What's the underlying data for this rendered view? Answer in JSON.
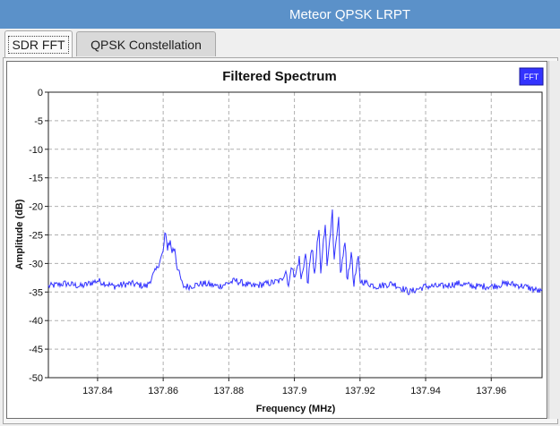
{
  "window": {
    "title": "Meteor QPSK LRPT"
  },
  "tabs": [
    {
      "label": "SDR FFT",
      "active": true
    },
    {
      "label": "QPSK Constellation",
      "active": false
    }
  ],
  "legend": {
    "label": "FFT",
    "color": "#3333ff"
  },
  "chart_data": {
    "type": "line",
    "title": "Filtered Spectrum",
    "xlabel": "Frequency (MHz)",
    "ylabel": "Amplitude (dB)",
    "xlim": [
      137.825,
      137.9755
    ],
    "ylim": [
      -50,
      0
    ],
    "xticks": [
      137.84,
      137.86,
      137.88,
      137.9,
      137.92,
      137.94,
      137.96
    ],
    "xtick_labels": [
      "137.84",
      "137.86",
      "137.88",
      "137.9",
      "137.92",
      "137.94",
      "137.96"
    ],
    "yticks": [
      0,
      -5,
      -10,
      -15,
      -20,
      -25,
      -30,
      -35,
      -40,
      -45,
      -50
    ],
    "ytick_labels": [
      "0",
      "-5",
      "-10",
      "-15",
      "-20",
      "-25",
      "-30",
      "-35",
      "-40",
      "-45",
      "-50"
    ],
    "grid": true,
    "legend_position": "top-right",
    "series": [
      {
        "color": "#3333ff",
        "x": [
          137.825,
          137.83,
          137.835,
          137.84,
          137.845,
          137.85,
          137.855,
          137.858,
          137.86,
          137.8605,
          137.8612,
          137.862,
          137.8628,
          137.8636,
          137.864,
          137.866,
          137.868,
          137.872,
          137.877,
          137.882,
          137.887,
          137.892,
          137.896,
          137.8975,
          137.898,
          137.8995,
          137.9,
          137.9015,
          137.902,
          137.9035,
          137.904,
          137.9055,
          137.906,
          137.9075,
          137.908,
          137.9095,
          137.91,
          137.9115,
          137.912,
          137.9135,
          137.914,
          137.9155,
          137.916,
          137.9175,
          137.918,
          137.9195,
          137.92,
          137.925,
          137.93,
          137.935,
          137.94,
          137.945,
          137.95,
          137.955,
          137.96,
          137.965,
          137.97,
          137.9755
        ],
        "y": [
          -34,
          -33.5,
          -34,
          -33,
          -34,
          -33.5,
          -34,
          -31,
          -28,
          -25,
          -27,
          -26,
          -28,
          -27,
          -30,
          -34,
          -34,
          -33.5,
          -34,
          -33,
          -34,
          -33.5,
          -33,
          -31,
          -34,
          -30,
          -33,
          -29,
          -33,
          -28,
          -34,
          -26,
          -33,
          -24,
          -32,
          -22,
          -31,
          -20,
          -30,
          -23,
          -32,
          -26,
          -33,
          -28,
          -34,
          -29,
          -33,
          -34,
          -33.5,
          -35,
          -34,
          -34,
          -33.5,
          -34,
          -34,
          -33.5,
          -34,
          -35
        ]
      }
    ]
  }
}
